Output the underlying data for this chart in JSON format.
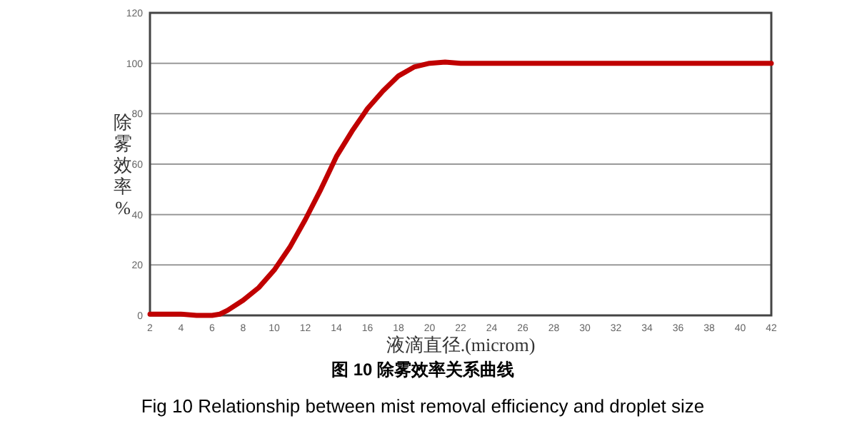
{
  "chart_data": {
    "type": "line",
    "xlabel": "液滴直径.(microm)",
    "ylabel": "除雾效率%",
    "annotations": [
      "图 10  除雾效率关系曲线",
      "Fig 10   Relationship between mist removal efficiency and droplet size"
    ],
    "xlim": [
      2,
      42
    ],
    "xticks": [
      2,
      4,
      6,
      8,
      10,
      12,
      14,
      16,
      18,
      20,
      22,
      24,
      26,
      28,
      30,
      32,
      34,
      36,
      38,
      40,
      42
    ],
    "ylim": [
      0,
      120
    ],
    "yticks": [
      0,
      20,
      40,
      60,
      80,
      100,
      120
    ],
    "grid": "y",
    "marker": "none",
    "line_style": "solid",
    "series": [
      {
        "color": "#c00000",
        "x": [
          2,
          4,
          5,
          6,
          6.5,
          7,
          8,
          9,
          10,
          11,
          12,
          13,
          14,
          15,
          16,
          17,
          18,
          19,
          20,
          21,
          22,
          24,
          30,
          36,
          42
        ],
        "values": [
          0.5,
          0.5,
          0,
          0,
          0.5,
          2,
          6,
          11,
          18,
          27,
          38,
          50,
          63,
          73,
          82,
          89,
          95,
          98.5,
          100,
          100.5,
          100,
          100,
          100,
          100,
          100
        ]
      }
    ]
  }
}
